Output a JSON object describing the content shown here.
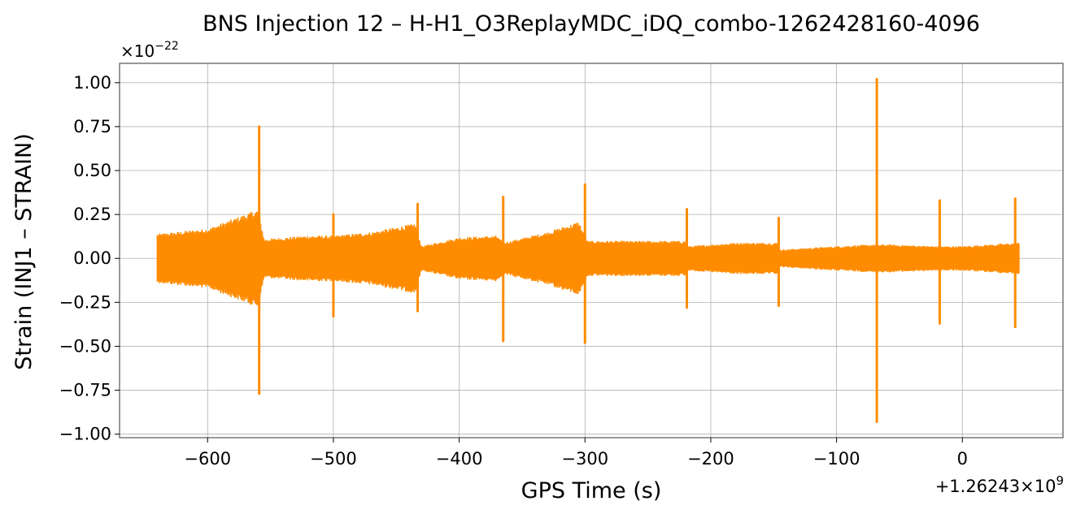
{
  "chart_data": {
    "type": "line",
    "title": "BNS Injection 12 – H-H1_O3ReplayMDC_iDQ_combo-1262428160-4096",
    "xlabel": "GPS Time (s)",
    "ylabel": "Strain (INJ1 – STRAIN)",
    "x_offset_label": "+1.26243×10",
    "x_offset_exponent": "9",
    "y_scale_label": "×10",
    "y_scale_exponent": "−22",
    "xlim": [
      -670,
      80
    ],
    "ylim": [
      -1.02,
      1.11
    ],
    "x_ticks": [
      -600,
      -500,
      -400,
      -300,
      -200,
      -100,
      0
    ],
    "x_tick_labels": [
      "−600",
      "−500",
      "−400",
      "−300",
      "−200",
      "−100",
      "0"
    ],
    "y_ticks": [
      1.0,
      0.75,
      0.5,
      0.25,
      0.0,
      -0.25,
      -0.5,
      -0.75,
      -1.0
    ],
    "y_tick_labels": [
      "1.00",
      "0.75",
      "0.50",
      "0.25",
      "0.00",
      "−0.25",
      "−0.50",
      "−0.75",
      "−1.00"
    ],
    "grid": true,
    "line_color": "#ff8c00",
    "series": [
      {
        "noise_envelope": {
          "t": [
            -640,
            -600,
            -560,
            -555,
            -520,
            -500,
            -470,
            -435,
            -430,
            -400,
            -370,
            -365,
            -330,
            -305,
            -298,
            -250,
            -220,
            -218,
            -180,
            -147,
            -145,
            -100,
            -70,
            -60,
            -20,
            -18,
            0,
            45
          ],
          "amplitude": [
            0.14,
            0.17,
            0.28,
            0.11,
            0.13,
            0.13,
            0.15,
            0.2,
            0.07,
            0.12,
            0.13,
            0.09,
            0.15,
            0.21,
            0.1,
            0.1,
            0.1,
            0.07,
            0.09,
            0.09,
            0.05,
            0.07,
            0.08,
            0.08,
            0.07,
            0.07,
            0.07,
            0.09
          ]
        },
        "spikes": [
          {
            "t": -559,
            "max": 0.75,
            "min": -0.77
          },
          {
            "t": -500,
            "max": 0.25,
            "min": -0.33
          },
          {
            "t": -433,
            "max": 0.31,
            "min": -0.3
          },
          {
            "t": -365,
            "max": 0.35,
            "min": -0.47
          },
          {
            "t": -300,
            "max": 0.42,
            "min": -0.48
          },
          {
            "t": -219,
            "max": 0.28,
            "min": -0.28
          },
          {
            "t": -146,
            "max": 0.23,
            "min": -0.27
          },
          {
            "t": -68,
            "max": 1.02,
            "min": -0.93
          },
          {
            "t": -18,
            "max": 0.33,
            "min": -0.37
          },
          {
            "t": 42,
            "max": 0.34,
            "min": -0.39
          }
        ]
      }
    ]
  }
}
